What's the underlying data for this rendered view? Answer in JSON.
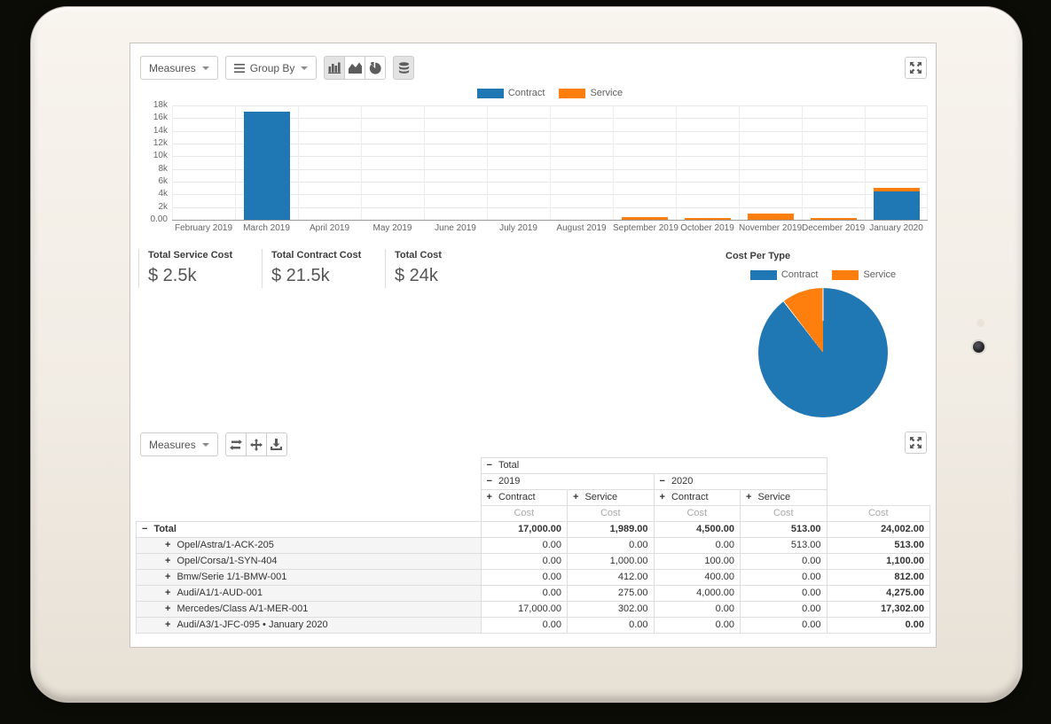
{
  "toolbar_graph": {
    "measures_label": "Measures",
    "group_by_label": "Group By",
    "chart_type_buttons": [
      "bar-chart",
      "area-chart",
      "pie-chart"
    ],
    "active_buttons": [
      "bar-chart",
      "stacked"
    ],
    "stacked_button": "stacked",
    "fullscreen_button": "expand-arrows"
  },
  "toolbar_pivot": {
    "measures_label": "Measures",
    "icon_buttons": [
      "flip-axis",
      "expand-all",
      "download"
    ],
    "fullscreen_button": "expand-arrows"
  },
  "kpis": [
    {
      "label": "Total Service Cost",
      "value": "$ 2.5k"
    },
    {
      "label": "Total Contract Cost",
      "value": "$ 21.5k"
    },
    {
      "label": "Total Cost",
      "value": "$ 24k"
    }
  ],
  "colors": {
    "contract": "#1f77b4",
    "service": "#ff7f0e"
  },
  "chart_data": [
    {
      "type": "bar",
      "stacked": true,
      "legend_position": "top",
      "categories": [
        "February 2019",
        "March 2019",
        "April 2019",
        "May 2019",
        "June 2019",
        "July 2019",
        "August 2019",
        "September 2019",
        "October 2019",
        "November 2019",
        "December 2019",
        "January 2020"
      ],
      "series": [
        {
          "name": "Contract",
          "color": "#1f77b4",
          "values": [
            0,
            17000,
            0,
            0,
            0,
            0,
            0,
            0,
            0,
            0,
            0,
            4500
          ]
        },
        {
          "name": "Service",
          "color": "#ff7f0e",
          "values": [
            0,
            0,
            0,
            0,
            0,
            0,
            0,
            412,
            275,
            1000,
            302,
            513
          ]
        }
      ],
      "ylim": [
        0,
        18000
      ],
      "yticks": [
        {
          "label": "0.00",
          "value": 0
        },
        {
          "label": "2k",
          "value": 2000
        },
        {
          "label": "4k",
          "value": 4000
        },
        {
          "label": "6k",
          "value": 6000
        },
        {
          "label": "8k",
          "value": 8000
        },
        {
          "label": "10k",
          "value": 10000
        },
        {
          "label": "12k",
          "value": 12000
        },
        {
          "label": "14k",
          "value": 14000
        },
        {
          "label": "16k",
          "value": 16000
        },
        {
          "label": "18k",
          "value": 18000
        }
      ],
      "grid": true,
      "title": ""
    },
    {
      "type": "pie",
      "title": "Cost Per Type",
      "legend_position": "top",
      "slices": [
        {
          "label": "Contract",
          "value": 21500,
          "color": "#1f77b4"
        },
        {
          "label": "Service",
          "value": 2502,
          "color": "#ff7f0e"
        }
      ]
    }
  ],
  "pivot": {
    "measure_label": "Cost",
    "measure_count": 5,
    "header_rows": [
      [
        {
          "label": "Total",
          "sign": "minus",
          "colspan": 4
        }
      ],
      [
        {
          "label": "2019",
          "sign": "minus",
          "colspan": 2
        },
        {
          "label": "2020",
          "sign": "minus",
          "colspan": 2
        }
      ],
      [
        {
          "label": "Contract",
          "sign": "plus",
          "colspan": 1
        },
        {
          "label": "Service",
          "sign": "plus",
          "colspan": 1
        },
        {
          "label": "Contract",
          "sign": "plus",
          "colspan": 1
        },
        {
          "label": "Service",
          "sign": "plus",
          "colspan": 1
        }
      ]
    ],
    "rows": [
      {
        "label": "Total",
        "sign": "minus",
        "level": 0,
        "bold": true,
        "values": [
          "17,000.00",
          "1,989.00",
          "4,500.00",
          "513.00",
          "24,002.00"
        ]
      },
      {
        "label": "Opel/Astra/1-ACK-205",
        "sign": "plus",
        "level": 1,
        "values": [
          "0.00",
          "0.00",
          "0.00",
          "513.00",
          "513.00"
        ]
      },
      {
        "label": "Opel/Corsa/1-SYN-404",
        "sign": "plus",
        "level": 1,
        "values": [
          "0.00",
          "1,000.00",
          "100.00",
          "0.00",
          "1,100.00"
        ]
      },
      {
        "label": "Bmw/Serie 1/1-BMW-001",
        "sign": "plus",
        "level": 1,
        "values": [
          "0.00",
          "412.00",
          "400.00",
          "0.00",
          "812.00"
        ]
      },
      {
        "label": "Audi/A1/1-AUD-001",
        "sign": "plus",
        "level": 1,
        "values": [
          "0.00",
          "275.00",
          "4,000.00",
          "0.00",
          "4,275.00"
        ]
      },
      {
        "label": "Mercedes/Class A/1-MER-001",
        "sign": "plus",
        "level": 1,
        "values": [
          "17,000.00",
          "302.00",
          "0.00",
          "0.00",
          "17,302.00"
        ]
      },
      {
        "label": "Audi/A3/1-JFC-095 • January 2020",
        "sign": "plus",
        "level": 1,
        "values": [
          "0.00",
          "0.00",
          "0.00",
          "0.00",
          "0.00"
        ]
      }
    ]
  }
}
